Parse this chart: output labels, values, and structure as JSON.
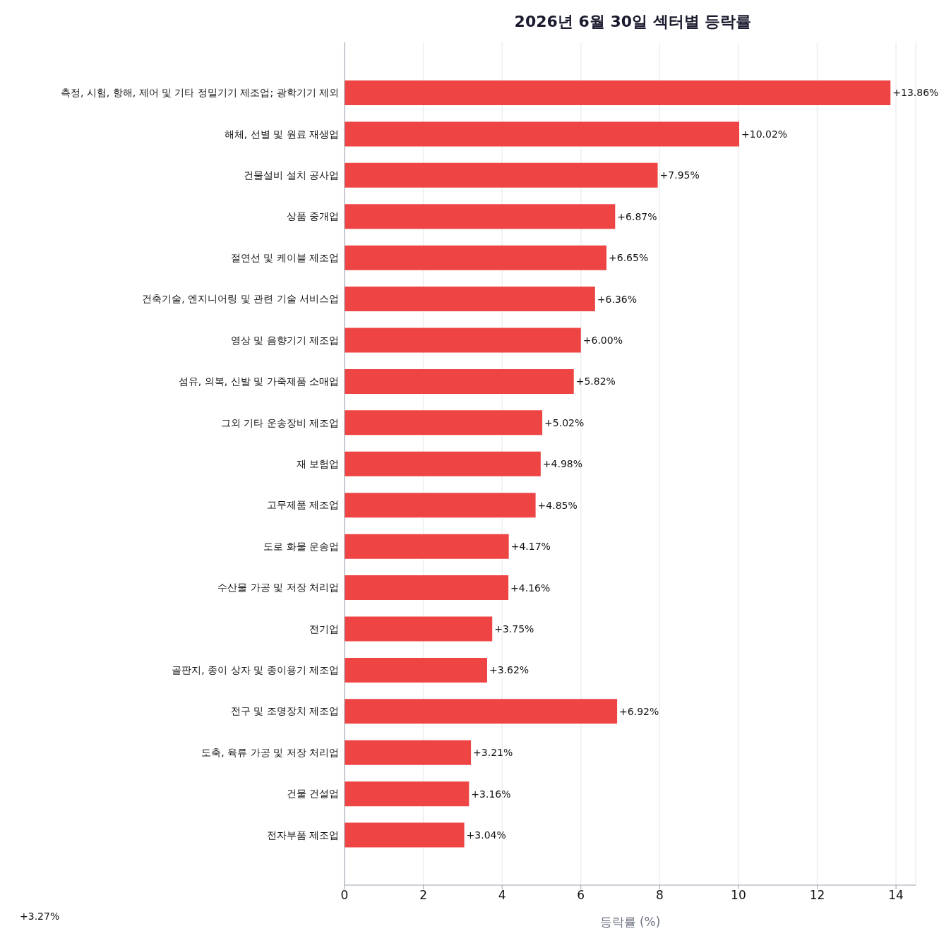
{
  "chart_data": {
    "type": "bar",
    "orientation": "horizontal",
    "title": "2026년 6월 30일 섹터별 등락률",
    "xlabel": "등락률 (%)",
    "categories": [
      "측정, 시험, 항해, 제어 및 기타 정밀기기 제조업; 광학기기 제외",
      "해체, 선별 및 원료 재생업",
      "건물설비 설치 공사업",
      "상품 중개업",
      "절연선 및 케이블 제조업",
      "건축기술, 엔지니어링 및 관련 기술 서비스업",
      "영상 및 음향기기 제조업",
      "섬유, 의복, 신발 및 가죽제품 소매업",
      "그외 기타 운송장비 제조업",
      "재 보험업",
      "고무제품 제조업",
      "도로 화물 운송업",
      "수산물 가공 및 저장 처리업",
      "전기업",
      "골판지, 종이 상자 및 종이용기 제조업",
      "전구 및 조명장치 제조업",
      "도축, 육류 가공 및 저장 처리업",
      "건물 건설업",
      "전자부품 제조업"
    ],
    "values": [
      13.86,
      10.02,
      7.95,
      6.87,
      6.65,
      6.36,
      6.0,
      5.82,
      5.02,
      4.98,
      4.85,
      4.17,
      4.16,
      3.75,
      3.62,
      6.92,
      3.21,
      3.16,
      3.04
    ],
    "value_labels": [
      "+13.86%",
      "+10.02%",
      "+7.95%",
      "+6.87%",
      "+6.65%",
      "+6.36%",
      "+6.00%",
      "+5.82%",
      "+5.02%",
      "+4.98%",
      "+4.85%",
      "+4.17%",
      "+4.16%",
      "+3.75%",
      "+3.62%",
      "+6.92%",
      "+3.21%",
      "+3.16%",
      "+3.04%"
    ],
    "color": "#ef4444",
    "annotations": [
      "+3.27%"
    ],
    "xlim": [
      0,
      14.5
    ],
    "xticks": [
      0,
      2,
      4,
      6,
      8,
      10,
      12,
      14
    ],
    "grid": "x"
  }
}
